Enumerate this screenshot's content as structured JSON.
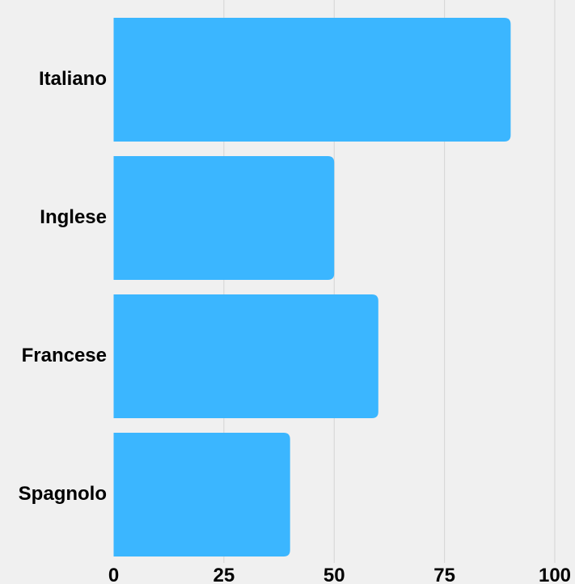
{
  "chart_data": {
    "type": "bar",
    "orientation": "horizontal",
    "categories": [
      "Italiano",
      "Inglese",
      "Francese",
      "Spagnolo"
    ],
    "values": [
      90,
      50,
      60,
      40
    ],
    "xlim": [
      0,
      100
    ],
    "xticks": [
      "0",
      "25",
      "50",
      "75",
      "100"
    ],
    "grid": true,
    "bar_color": "#3bb6ff",
    "background_color": "#f0f0f0",
    "title": "",
    "xlabel": "",
    "ylabel": ""
  }
}
